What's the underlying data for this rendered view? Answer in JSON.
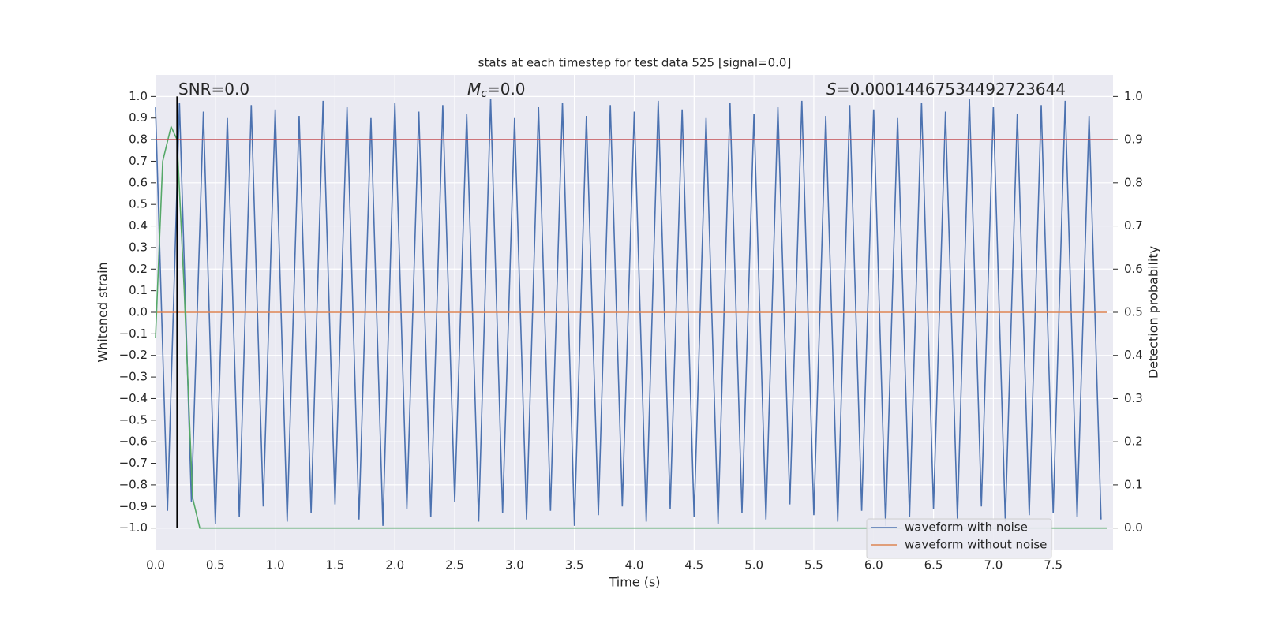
{
  "chart_data": {
    "type": "line",
    "title": "stats at each timestep for test data 525 [signal=0.0]",
    "xlabel": "Time (s)",
    "ylabel": "Whitened strain",
    "y2label": "Detection probability",
    "annotations": [
      {
        "text": "SNR=0.0"
      },
      {
        "symbol": "M",
        "subscript": "c",
        "text": "=0.0"
      },
      {
        "symbol": "S",
        "text": "=0.00014467534492723644"
      }
    ],
    "xlim": [
      0,
      8.0
    ],
    "ylim": [
      -1.1,
      1.1
    ],
    "y2lim": [
      -0.05,
      1.05
    ],
    "grid": true,
    "legend": "lower right",
    "xticks": [
      {
        "value": 0,
        "label": "0.0"
      },
      {
        "value": 0.5,
        "label": "0.5"
      },
      {
        "value": 1,
        "label": "1.0"
      },
      {
        "value": 1.5,
        "label": "1.5"
      },
      {
        "value": 2,
        "label": "2.0"
      },
      {
        "value": 2.5,
        "label": "2.5"
      },
      {
        "value": 3,
        "label": "3.0"
      },
      {
        "value": 3.5,
        "label": "3.5"
      },
      {
        "value": 4,
        "label": "4.0"
      },
      {
        "value": 4.5,
        "label": "4.5"
      },
      {
        "value": 5,
        "label": "5.0"
      },
      {
        "value": 5.5,
        "label": "5.5"
      },
      {
        "value": 6,
        "label": "6.0"
      },
      {
        "value": 6.5,
        "label": "6.5"
      },
      {
        "value": 7,
        "label": "7.0"
      },
      {
        "value": 7.5,
        "label": "7.5"
      }
    ],
    "yticks": [
      {
        "value": 1,
        "label": "1.0"
      },
      {
        "value": 0.9,
        "label": "0.9"
      },
      {
        "value": 0.8,
        "label": "0.8"
      },
      {
        "value": 0.7,
        "label": "0.7"
      },
      {
        "value": 0.6,
        "label": "0.6"
      },
      {
        "value": 0.5,
        "label": "0.5"
      },
      {
        "value": 0.4,
        "label": "0.4"
      },
      {
        "value": 0.3,
        "label": "0.3"
      },
      {
        "value": 0.2,
        "label": "0.2"
      },
      {
        "value": 0.1,
        "label": "0.1"
      },
      {
        "value": 0,
        "label": "0.0"
      },
      {
        "value": -0.1,
        "label": "−0.1"
      },
      {
        "value": -0.2,
        "label": "−0.2"
      },
      {
        "value": -0.3,
        "label": "−0.3"
      },
      {
        "value": -0.4,
        "label": "−0.4"
      },
      {
        "value": -0.5,
        "label": "−0.5"
      },
      {
        "value": -0.6,
        "label": "−0.6"
      },
      {
        "value": -0.7,
        "label": "−0.7"
      },
      {
        "value": -0.8,
        "label": "−0.8"
      },
      {
        "value": -0.9,
        "label": "−0.9"
      },
      {
        "value": -1,
        "label": "−1.0"
      }
    ],
    "y2ticks": [
      {
        "value": 1,
        "label": "1.0"
      },
      {
        "value": 0.9,
        "label": "0.9"
      },
      {
        "value": 0.8,
        "label": "0.8"
      },
      {
        "value": 0.7,
        "label": "0.7"
      },
      {
        "value": 0.6,
        "label": "0.6"
      },
      {
        "value": 0.5,
        "label": "0.5"
      },
      {
        "value": 0.4,
        "label": "0.4"
      },
      {
        "value": 0.3,
        "label": "0.3"
      },
      {
        "value": 0.2,
        "label": "0.2"
      },
      {
        "value": 0.1,
        "label": "0.1"
      },
      {
        "value": 0,
        "label": "0.0"
      }
    ],
    "hlines": [
      {
        "value": 0.8,
        "color": "#c44e52"
      }
    ],
    "vlines": [
      {
        "value": 0.18,
        "color": "#000000"
      }
    ],
    "series": [
      {
        "name": "waveform with noise",
        "color": "#4c72b0",
        "x": [
          0,
          0.1,
          0.2,
          0.3,
          0.4,
          0.5,
          0.6,
          0.7,
          0.8,
          0.9,
          1,
          1.1,
          1.2,
          1.3,
          1.4,
          1.5,
          1.6,
          1.7,
          1.8,
          1.9,
          2,
          2.1,
          2.2,
          2.3,
          2.4,
          2.5,
          2.6,
          2.7,
          2.8,
          2.9,
          3,
          3.1,
          3.2,
          3.3,
          3.4,
          3.5,
          3.6,
          3.7,
          3.8,
          3.9,
          4,
          4.1,
          4.2,
          4.3,
          4.4,
          4.5,
          4.6,
          4.7,
          4.8,
          4.9,
          5,
          5.1,
          5.2,
          5.3,
          5.4,
          5.5,
          5.6,
          5.7,
          5.8,
          5.9,
          6,
          6.1,
          6.2,
          6.3,
          6.4,
          6.5,
          6.6,
          6.7,
          6.8,
          6.9,
          7,
          7.1,
          7.2,
          7.3,
          7.4,
          7.5,
          7.6,
          7.7,
          7.8,
          7.9
        ],
        "values": [
          0.95,
          -0.92,
          0.97,
          -0.88,
          0.93,
          -0.98,
          0.9,
          -0.95,
          0.96,
          -0.9,
          0.94,
          -0.97,
          0.91,
          -0.93,
          0.98,
          -0.89,
          0.95,
          -0.96,
          0.9,
          -0.99,
          0.97,
          -0.91,
          0.93,
          -0.95,
          0.96,
          -0.88,
          0.92,
          -0.97,
          0.99,
          -0.93,
          0.9,
          -0.96,
          0.95,
          -0.92,
          0.97,
          -0.99,
          0.91,
          -0.94,
          0.96,
          -0.9,
          0.93,
          -0.97,
          0.98,
          -0.91,
          0.94,
          -0.95,
          0.9,
          -0.98,
          0.97,
          -0.93,
          0.92,
          -0.96,
          0.95,
          -0.89,
          0.98,
          -0.94,
          0.91,
          -0.97,
          0.96,
          -0.92,
          0.94,
          -0.99,
          0.9,
          -0.95,
          0.97,
          -0.91,
          0.93,
          -0.96,
          0.99,
          -0.9,
          0.95,
          -0.97,
          0.92,
          -0.94,
          0.96,
          -0.93,
          0.98,
          -0.95,
          0.91,
          -0.96
        ]
      },
      {
        "name": "waveform without noise",
        "color": "#dd8452",
        "x": [
          0,
          7.95
        ],
        "values": [
          0,
          0
        ]
      },
      {
        "color": "#55a868",
        "axis": "y2",
        "x": [
          0,
          0.06,
          0.13,
          0.18,
          0.24,
          0.31,
          0.37,
          7.95
        ],
        "values": [
          0.44,
          0.85,
          0.93,
          0.9,
          0.55,
          0.07,
          0,
          0
        ]
      }
    ]
  }
}
